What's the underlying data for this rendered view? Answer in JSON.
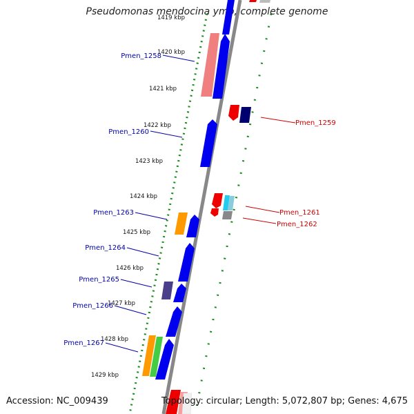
{
  "title": "Pseudomonas mendocina ymp, complete genome",
  "accession": "Accession: NC_009439",
  "topology": "Topology: circular; Length: 5,072,807 bp; Genes: 4,675",
  "ticks": [
    "1419 kbp",
    "1420 kbp",
    "1421 kbp",
    "1422 kbp",
    "1423 kbp",
    "1424 kbp",
    "1425 kbp",
    "1426 kbp",
    "1427 kbp",
    "1428 kbp",
    "1429 kbp"
  ],
  "genes_left": [
    "Pmen_1258",
    "Pmen_1260",
    "Pmen_1263",
    "Pmen_1264",
    "Pmen_1265",
    "Pmen_1266",
    "Pmen_1267"
  ],
  "genes_right": [
    "Pmen_1259",
    "Pmen_1261",
    "Pmen_1262"
  ],
  "colors": {
    "forward": "#0000ee",
    "reverse": "#ee0000",
    "pink": "#f08080",
    "orange": "#ff9900",
    "green": "#44cc44",
    "purple": "#4a3f8a",
    "navy": "#00006e",
    "cyan": "#22ccee",
    "gray": "#888888",
    "backbone": "#888888",
    "dots": "#1a8a1a",
    "label_blue": "#0000aa",
    "label_red": "#cc0000"
  }
}
